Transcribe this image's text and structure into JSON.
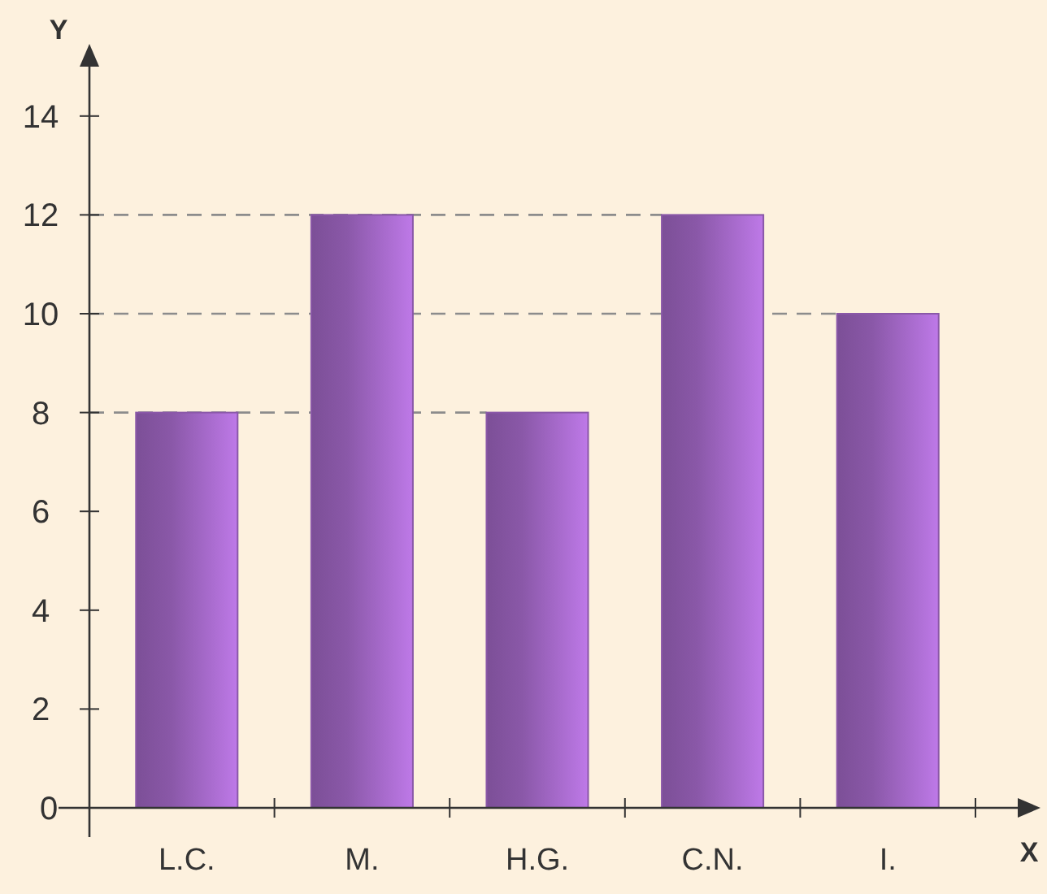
{
  "chart_data": {
    "type": "bar",
    "xlabel": "X",
    "ylabel": "Y",
    "categories": [
      "L.C.",
      "M.",
      "H.G.",
      "C.N.",
      "I."
    ],
    "values": [
      8,
      12,
      8,
      12,
      10
    ],
    "color": "#8a58a8",
    "ylim": [
      0,
      15
    ],
    "yticks": [
      0,
      2,
      4,
      6,
      8,
      10,
      12,
      14
    ],
    "grid": false,
    "ref_lines": [
      {
        "axis": "y",
        "value": 8,
        "color": "#8c8c8c",
        "line_style": "dashed"
      },
      {
        "axis": "y",
        "value": 10,
        "color": "#8c8c8c",
        "line_style": "dashed"
      },
      {
        "axis": "y",
        "value": 12,
        "color": "#8c8c8c",
        "line_style": "dashed"
      }
    ]
  }
}
